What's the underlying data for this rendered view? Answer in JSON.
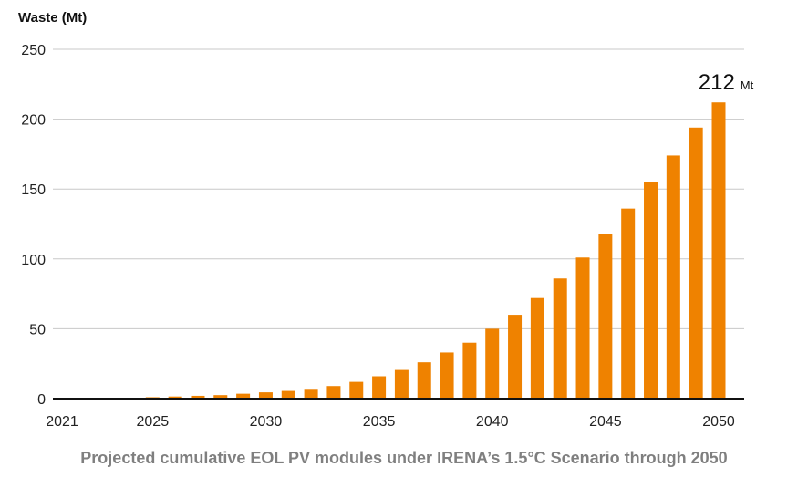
{
  "chart_data": {
    "type": "bar",
    "ylabel": "Waste (Mt)",
    "xlabel": "",
    "ylim": [
      0,
      250
    ],
    "yticks": [
      0,
      50,
      100,
      150,
      200,
      250
    ],
    "xtick_labels": [
      "2021",
      "2025",
      "2030",
      "2035",
      "2040",
      "2045",
      "2050"
    ],
    "categories": [
      "2021",
      "2022",
      "2023",
      "2024",
      "2025",
      "2026",
      "2027",
      "2028",
      "2029",
      "2030",
      "2031",
      "2032",
      "2033",
      "2034",
      "2035",
      "2036",
      "2037",
      "2038",
      "2039",
      "2040",
      "2041",
      "2042",
      "2043",
      "2044",
      "2045",
      "2046",
      "2047",
      "2048",
      "2049",
      "2050"
    ],
    "values": [
      0,
      0,
      0,
      0,
      1,
      1.5,
      2,
      2.5,
      3.5,
      4.5,
      5.5,
      7,
      9,
      12,
      16,
      20.5,
      26,
      33,
      40,
      50,
      60,
      72,
      86,
      101,
      118,
      136,
      155,
      174,
      194,
      212
    ],
    "bar_color": "#ef8200",
    "grid": true,
    "annotation": {
      "value": "212",
      "unit": "Mt",
      "category": "2050"
    }
  },
  "caption": "Projected cumulative EOL PV modules under IRENA’s 1.5°C Scenario through 2050"
}
